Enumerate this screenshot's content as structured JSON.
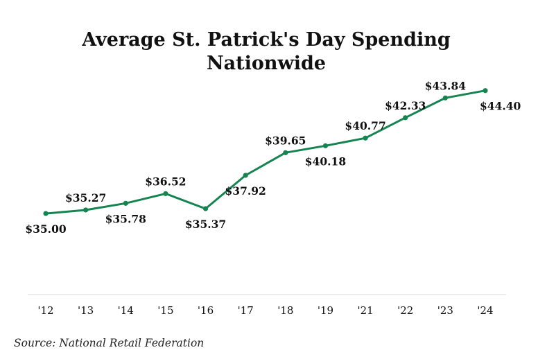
{
  "chart_data": {
    "type": "line",
    "title": [
      "Average St. Patrick's Day Spending",
      "Nationwide"
    ],
    "categories": [
      "'12",
      "'13",
      "'14",
      "'15",
      "'16",
      "'17",
      "'18",
      "'19",
      "'21",
      "'22",
      "'23",
      "'24"
    ],
    "series": [
      {
        "values": [
          35.0,
          35.27,
          35.78,
          36.52,
          35.37,
          37.92,
          39.65,
          40.18,
          40.77,
          42.33,
          43.84,
          44.4
        ],
        "labels": [
          "$35.00",
          "$35.27",
          "$35.78",
          "$36.52",
          "$35.37",
          "$37.92",
          "$39.65",
          "$40.18",
          "$40.77",
          "$42.33",
          "$43.84",
          "$44.40"
        ],
        "color": "#168451"
      }
    ],
    "xlabel": "",
    "ylabel": "",
    "ylim": [
      28.8,
      45.5
    ],
    "grid": false,
    "legend": "none",
    "axis_color": "#d9d9d9"
  },
  "source": "Source: National Retail Federation"
}
